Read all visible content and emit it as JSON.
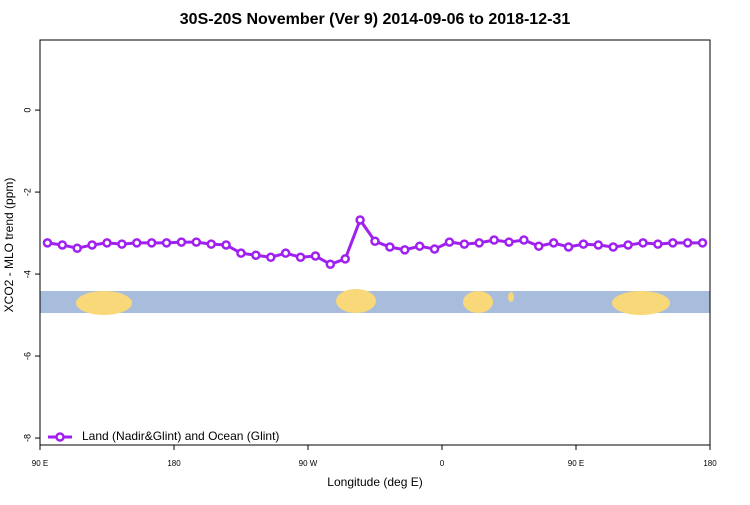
{
  "chart_data": {
    "type": "line",
    "title": "30S-20S November (Ver 9)   2014-09-06 to 2018-12-31",
    "x_label": "Longitude (deg E)",
    "y_label": "XCO2 - MLO trend (ppm)",
    "x": [
      95,
      105,
      115,
      125,
      135,
      145,
      155,
      165,
      175,
      185,
      195,
      205,
      215,
      225,
      235,
      245,
      255,
      265,
      275,
      285,
      295,
      305,
      315,
      325,
      335,
      345,
      355,
      365,
      375,
      385,
      395,
      405,
      415,
      425,
      435,
      445,
      455,
      465,
      475,
      485,
      495,
      505,
      515,
      525,
      535
    ],
    "series": [
      {
        "name": "Land (Nadir&Glint) and Ocean (Glint)",
        "color": "#a020f0",
        "values": [
          -3.24,
          -3.29,
          -3.37,
          -3.29,
          -3.24,
          -3.27,
          -3.24,
          -3.24,
          -3.24,
          -3.22,
          -3.22,
          -3.27,
          -3.29,
          -3.49,
          -3.54,
          -3.59,
          -3.49,
          -3.59,
          -3.56,
          -3.76,
          -3.63,
          -2.68,
          -3.2,
          -3.34,
          -3.41,
          -3.32,
          -3.39,
          -3.22,
          -3.27,
          -3.24,
          -3.17,
          -3.22,
          -3.17,
          -3.32,
          -3.24,
          -3.34,
          -3.27,
          -3.29,
          -3.34,
          -3.29,
          -3.24,
          -3.27,
          -3.24,
          -3.24,
          -3.24
        ]
      }
    ],
    "xlim": [
      90,
      540
    ],
    "xticks": [
      {
        "value": 90,
        "label": "90 E"
      },
      180,
      {
        "value": 270,
        "label": "90 W"
      },
      {
        "value": 360,
        "label": "0"
      },
      {
        "value": 450,
        "label": "90 E"
      },
      {
        "value": 540,
        "label": "180"
      }
    ],
    "ylim": [
      -8.17,
      1.71
    ],
    "yticks": [
      -8,
      -6,
      -4,
      -2,
      0
    ],
    "legend": "bottom-left"
  }
}
